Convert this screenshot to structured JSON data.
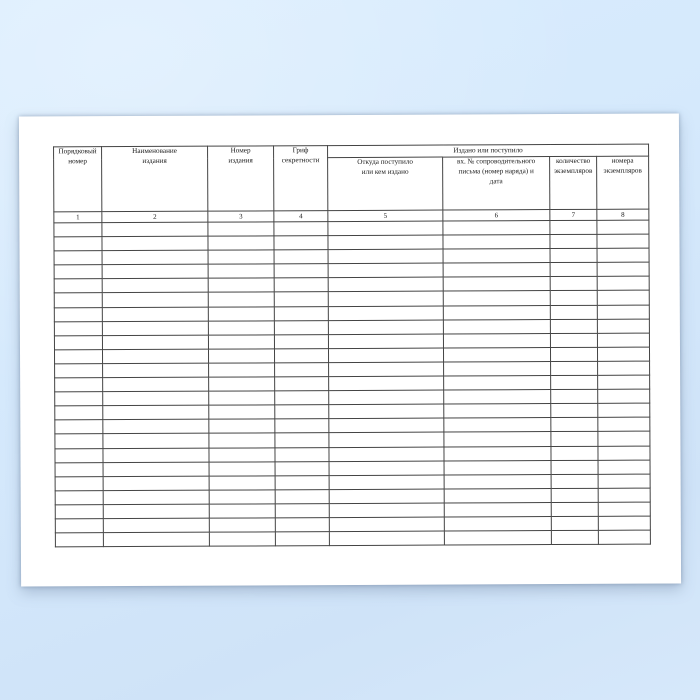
{
  "document": {
    "kind": "registration-journal-blank-form",
    "group_header": "Издано или поступило",
    "columns": [
      {
        "label": "Порядковый\nномер",
        "number": "1"
      },
      {
        "label": "Наименование\nиздания",
        "number": "2"
      },
      {
        "label": "Номер\nиздания",
        "number": "3"
      },
      {
        "label": "Гриф\nсекретности",
        "number": "4"
      },
      {
        "label": "Откуда поступило\nили кем издано",
        "number": "5"
      },
      {
        "label": "вх. № сопроводительного\nписьма (номер наряда) и\nдата",
        "number": "6"
      },
      {
        "label": "количество\nэкземпляров",
        "number": "7"
      },
      {
        "label": "номера\nэкземпляров",
        "number": "8"
      }
    ],
    "empty_row_count": 23,
    "colors": {
      "background_blue": "#d5e9fc",
      "paper": "#ffffff",
      "table_border": "#444444",
      "text": "#1b1b1b"
    }
  }
}
